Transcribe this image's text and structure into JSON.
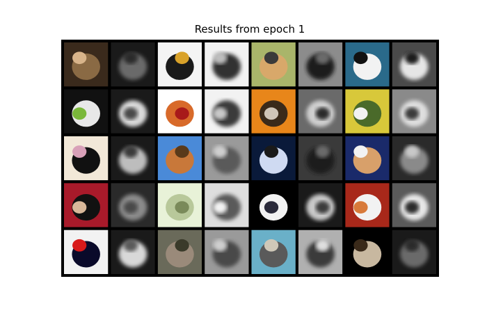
{
  "figure": {
    "title": "Results from epoch 1",
    "background": "#ffffff",
    "grid_background": "#000000"
  },
  "grid": {
    "rows": 5,
    "cols": 8,
    "cell_layout": "alternating input image and reconstruction",
    "cells": [
      [
        {
          "kind": "input",
          "subject": "cat",
          "colors": [
            "#3a2a1c",
            "#8a6a44",
            "#d8b48a"
          ]
        },
        {
          "kind": "reconstruction",
          "colors": [
            "#1a1a1a",
            "#6a6a6a",
            "#2a2a2a"
          ]
        },
        {
          "kind": "input",
          "subject": "boat",
          "colors": [
            "#f4f4f4",
            "#1a1a1a",
            "#d9a22a"
          ]
        },
        {
          "kind": "reconstruction",
          "colors": [
            "#f2f2f2",
            "#303030",
            "#bdbdbd"
          ]
        },
        {
          "kind": "input",
          "subject": "ostrich",
          "colors": [
            "#a9b56a",
            "#d8a86a",
            "#3a3a3a"
          ]
        },
        {
          "kind": "reconstruction",
          "colors": [
            "#8c8c8c",
            "#1e1e1e",
            "#6a6a6a"
          ]
        },
        {
          "kind": "input",
          "subject": "cat",
          "colors": [
            "#2a6a8a",
            "#f2f2f2",
            "#111111"
          ]
        },
        {
          "kind": "reconstruction",
          "colors": [
            "#4a4a4a",
            "#e6e6e6",
            "#1a1a1a"
          ]
        }
      ],
      [
        {
          "kind": "input",
          "subject": "cat",
          "colors": [
            "#111111",
            "#e8e8e8",
            "#7ab83a"
          ]
        },
        {
          "kind": "reconstruction",
          "colors": [
            "#1a1a1a",
            "#d8d8d8",
            "#4a4a4a"
          ]
        },
        {
          "kind": "input",
          "subject": "horse",
          "colors": [
            "#ffffff",
            "#d86a2a",
            "#a81a1a"
          ]
        },
        {
          "kind": "reconstruction",
          "colors": [
            "#f2f2f2",
            "#3a3a3a",
            "#c8c8c8"
          ]
        },
        {
          "kind": "input",
          "subject": "cat",
          "colors": [
            "#e8861a",
            "#3a2a1a",
            "#cfc5b8"
          ]
        },
        {
          "kind": "reconstruction",
          "colors": [
            "#6a6a6a",
            "#cfcfcf",
            "#2a2a2a"
          ]
        },
        {
          "kind": "input",
          "subject": "frog",
          "colors": [
            "#d8c83a",
            "#4a6a2a",
            "#f2f2f2"
          ]
        },
        {
          "kind": "reconstruction",
          "colors": [
            "#8a8a8a",
            "#dedede",
            "#3a3a3a"
          ]
        }
      ],
      [
        {
          "kind": "input",
          "subject": "cat",
          "colors": [
            "#f2e8d8",
            "#111111",
            "#d8a0b8"
          ]
        },
        {
          "kind": "reconstruction",
          "colors": [
            "#1a1a1a",
            "#bdbdbd",
            "#3a3a3a"
          ]
        },
        {
          "kind": "input",
          "subject": "deer",
          "colors": [
            "#4a8ad8",
            "#c8783a",
            "#5a3a1a"
          ]
        },
        {
          "kind": "reconstruction",
          "colors": [
            "#9a9a9a",
            "#5a5a5a",
            "#cfcfcf"
          ]
        },
        {
          "kind": "input",
          "subject": "cat",
          "colors": [
            "#0a1a3a",
            "#cfdaf2",
            "#1a1a1a"
          ]
        },
        {
          "kind": "reconstruction",
          "colors": [
            "#3a3a3a",
            "#1a1a1a",
            "#6a6a6a"
          ]
        },
        {
          "kind": "input",
          "subject": "cat",
          "colors": [
            "#1a2a6a",
            "#d8a06a",
            "#f2f2f2"
          ]
        },
        {
          "kind": "reconstruction",
          "colors": [
            "#2a2a2a",
            "#8a8a8a",
            "#c8c8c8"
          ]
        }
      ],
      [
        {
          "kind": "input",
          "subject": "cat",
          "colors": [
            "#a81a2a",
            "#111111",
            "#d8b89a"
          ]
        },
        {
          "kind": "reconstruction",
          "colors": [
            "#2a2a2a",
            "#8a8a8a",
            "#4a4a4a"
          ]
        },
        {
          "kind": "input",
          "subject": "cat",
          "colors": [
            "#e8f2d8",
            "#b8c89a",
            "#7a8a5a"
          ]
        },
        {
          "kind": "reconstruction",
          "colors": [
            "#dedede",
            "#5a5a5a",
            "#f2f2f2"
          ]
        },
        {
          "kind": "input",
          "subject": "cat",
          "colors": [
            "#000000",
            "#f2f2f2",
            "#2a2a3a"
          ]
        },
        {
          "kind": "reconstruction",
          "colors": [
            "#1a1a1a",
            "#c8c8c8",
            "#3a3a3a"
          ]
        },
        {
          "kind": "input",
          "subject": "cat",
          "colors": [
            "#a8281a",
            "#f2f2f2",
            "#d87a3a"
          ]
        },
        {
          "kind": "reconstruction",
          "colors": [
            "#5a5a5a",
            "#e6e6e6",
            "#2a2a2a"
          ]
        }
      ],
      [
        {
          "kind": "input",
          "subject": "car",
          "colors": [
            "#f2f2f2",
            "#0a0a2a",
            "#d81a1a"
          ]
        },
        {
          "kind": "reconstruction",
          "colors": [
            "#1a1a1a",
            "#d8d8d8",
            "#5a5a5a"
          ]
        },
        {
          "kind": "input",
          "subject": "cat",
          "colors": [
            "#6a6a5a",
            "#9a8a7a",
            "#3a3a2a"
          ]
        },
        {
          "kind": "reconstruction",
          "colors": [
            "#9a9a9a",
            "#4a4a4a",
            "#cfcfcf"
          ]
        },
        {
          "kind": "input",
          "subject": "cat",
          "colors": [
            "#6ab0c8",
            "#5a5a5a",
            "#cfc8b8"
          ]
        },
        {
          "kind": "reconstruction",
          "colors": [
            "#b0b0b0",
            "#3a3a3a",
            "#dedede"
          ]
        },
        {
          "kind": "input",
          "subject": "cat",
          "colors": [
            "#000000",
            "#c8b8a0",
            "#3a2a1a"
          ]
        },
        {
          "kind": "reconstruction",
          "colors": [
            "#1a1a1a",
            "#6a6a6a",
            "#2a2a2a"
          ]
        }
      ]
    ]
  }
}
